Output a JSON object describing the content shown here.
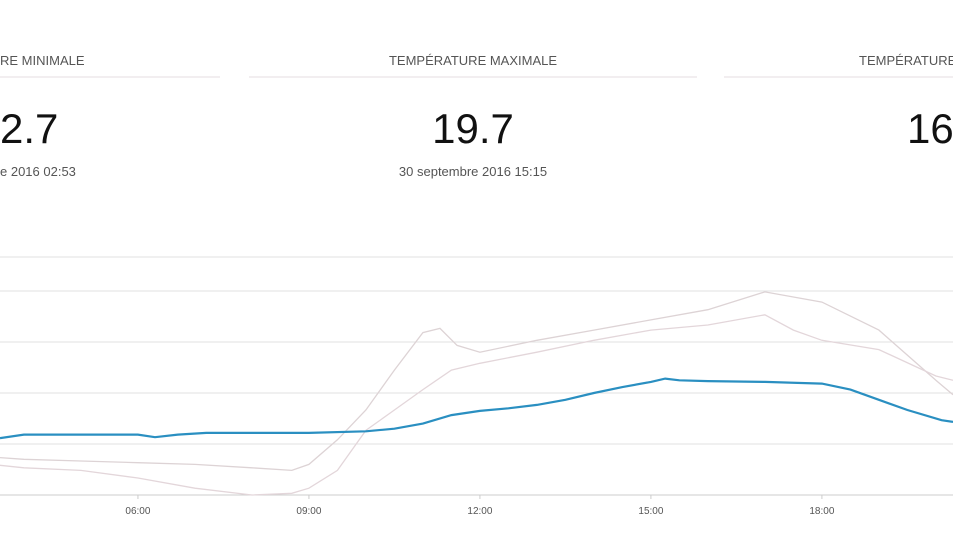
{
  "stats": [
    {
      "label": "RE MINIMALE",
      "value": "2.7",
      "time": "e 2016 02:53"
    },
    {
      "label": "TEMPÉRATURE MAXIMALE",
      "value": "19.7",
      "time": "30 septembre 2016 15:15"
    },
    {
      "label": "TEMPÉRATURE",
      "value": "16"
    }
  ],
  "chart_data": {
    "type": "line",
    "xlim": [
      3.58,
      20.3
    ],
    "ylim": [
      6,
      34
    ],
    "xticks": [
      {
        "value": 6,
        "label": "06:00"
      },
      {
        "value": 9,
        "label": "09:00"
      },
      {
        "value": 12,
        "label": "12:00"
      },
      {
        "value": 15,
        "label": "15:00"
      },
      {
        "value": 18,
        "label": "18:00"
      }
    ],
    "ygrid": [
      12,
      18,
      24,
      30,
      34
    ],
    "series": [
      {
        "color": "#ddd3d5",
        "x": [
          3.58,
          4,
          5,
          6,
          7,
          8,
          8.7,
          9,
          9.5,
          10,
          10.5,
          11,
          11.3,
          11.6,
          12,
          13,
          14,
          15,
          16,
          17,
          18,
          19,
          20,
          20.3
        ],
        "values": [
          10.4,
          10.2,
          10,
          9.8,
          9.6,
          9.2,
          8.9,
          9.6,
          12.5,
          16,
          20.7,
          25.1,
          25.6,
          23.6,
          22.8,
          24.2,
          25.4,
          26.6,
          27.8,
          29.9,
          28.7,
          25.4,
          19.5,
          17.8
        ]
      },
      {
        "color": "#e3d6da",
        "x": [
          3.58,
          4,
          5,
          6,
          7,
          8,
          8.7,
          9,
          9.5,
          10,
          10.5,
          11,
          11.5,
          12,
          13,
          14,
          15,
          16,
          17,
          17.5,
          18,
          19,
          20,
          20.3
        ],
        "values": [
          9.5,
          9.2,
          8.9,
          8,
          6.8,
          6,
          6.2,
          6.8,
          8.9,
          13.6,
          16,
          18.4,
          20.7,
          21.5,
          22.8,
          24.2,
          25.4,
          26,
          27.2,
          25.4,
          24.2,
          23.1,
          20,
          19.5
        ]
      },
      {
        "color": "#2a8fc1",
        "x": [
          3.58,
          4,
          5,
          6,
          6.3,
          6.7,
          7.2,
          9,
          10,
          10.5,
          11,
          11.5,
          12,
          12.5,
          13,
          13.5,
          14,
          14.5,
          15,
          15.25,
          15.5,
          16,
          17,
          18,
          18.5,
          19,
          19.5,
          20.1,
          20.3
        ],
        "values": [
          12.7,
          13.1,
          13.1,
          13.1,
          12.8,
          13.1,
          13.3,
          13.3,
          13.5,
          13.8,
          14.4,
          15.4,
          15.9,
          16.2,
          16.6,
          17.2,
          18,
          18.7,
          19.3,
          19.7,
          19.5,
          19.4,
          19.3,
          19.1,
          18.4,
          17.2,
          16,
          14.8,
          14.6
        ]
      }
    ]
  }
}
